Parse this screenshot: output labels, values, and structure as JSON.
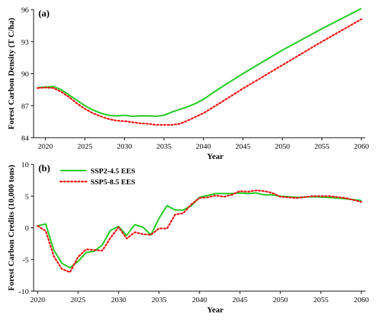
{
  "colors": {
    "ssp2": "#22cc22",
    "ssp5": "#ee1111",
    "axis": "#000000"
  },
  "chart_data": [
    {
      "type": "line",
      "panel_label": "(a)",
      "xlabel": "Year",
      "ylabel": "Forest Carbon Density (T C/ha)",
      "xlim": [
        2018.5,
        2060.5
      ],
      "ylim": [
        84,
        96
      ],
      "xticks": [
        2020,
        2025,
        2030,
        2035,
        2040,
        2045,
        2050,
        2055,
        2060
      ],
      "yticks": [
        84,
        87,
        90,
        93,
        96
      ],
      "series": [
        {
          "name": "SSP2-4.5 EES",
          "style": "solid",
          "x": [
            2019,
            2020,
            2021,
            2022,
            2023,
            2024,
            2025,
            2026,
            2027,
            2028,
            2029,
            2030,
            2031,
            2032,
            2033,
            2034,
            2035,
            2036,
            2037,
            2038,
            2039,
            2040,
            2042,
            2045,
            2050,
            2055,
            2060
          ],
          "y": [
            88.7,
            88.75,
            88.8,
            88.5,
            88.0,
            87.5,
            87.0,
            86.6,
            86.3,
            86.1,
            86.05,
            86.1,
            86.0,
            86.05,
            86.05,
            86.0,
            86.1,
            86.4,
            86.65,
            86.9,
            87.2,
            87.6,
            88.6,
            90.0,
            92.2,
            94.2,
            96.1
          ]
        },
        {
          "name": "SSP5-8.5 EES",
          "style": "dotted",
          "x": [
            2019,
            2020,
            2021,
            2022,
            2023,
            2024,
            2025,
            2026,
            2027,
            2028,
            2029,
            2030,
            2031,
            2032,
            2033,
            2034,
            2035,
            2036,
            2037,
            2038,
            2039,
            2040,
            2042,
            2045,
            2050,
            2055,
            2060
          ],
          "y": [
            88.65,
            88.7,
            88.65,
            88.3,
            87.8,
            87.2,
            86.7,
            86.3,
            86.0,
            85.75,
            85.6,
            85.55,
            85.45,
            85.35,
            85.3,
            85.2,
            85.2,
            85.2,
            85.3,
            85.6,
            85.95,
            86.3,
            87.2,
            88.6,
            90.8,
            93.0,
            95.1
          ]
        }
      ]
    },
    {
      "type": "line",
      "panel_label": "(b)",
      "xlabel": "Year",
      "ylabel": "Forest Carbon Credits (10,000 tons)",
      "xlim": [
        2019.5,
        2060.5
      ],
      "ylim": [
        -10,
        10
      ],
      "xticks": [
        2020,
        2025,
        2030,
        2035,
        2040,
        2045,
        2050,
        2055,
        2060
      ],
      "yticks": [
        -10,
        -5,
        0,
        5,
        10
      ],
      "legend": "top-left",
      "series": [
        {
          "name": "SSP2-4.5 EES",
          "style": "solid",
          "x": [
            2020,
            2021,
            2022,
            2023,
            2024,
            2025,
            2026,
            2027,
            2028,
            2029,
            2030,
            2031,
            2032,
            2033,
            2034,
            2035,
            2036,
            2037,
            2038,
            2039,
            2040,
            2041,
            2042,
            2043,
            2044,
            2045,
            2046,
            2047,
            2048,
            2049,
            2050,
            2052,
            2054,
            2056,
            2058,
            2060
          ],
          "y": [
            0.3,
            0.6,
            -3.5,
            -5.6,
            -6.3,
            -5.3,
            -3.9,
            -3.7,
            -2.7,
            -0.4,
            0.2,
            -1.2,
            0.5,
            0.1,
            -1.1,
            1.5,
            3.5,
            2.8,
            2.8,
            3.5,
            4.8,
            5.1,
            5.4,
            5.4,
            5.4,
            5.5,
            5.4,
            5.5,
            5.2,
            5.2,
            5.0,
            4.8,
            4.9,
            4.8,
            4.6,
            4.3
          ]
        },
        {
          "name": "SSP5-8.5 EES",
          "style": "dotted",
          "x": [
            2020,
            2021,
            2022,
            2023,
            2024,
            2025,
            2026,
            2027,
            2028,
            2029,
            2030,
            2031,
            2032,
            2033,
            2034,
            2035,
            2036,
            2037,
            2038,
            2039,
            2040,
            2041,
            2042,
            2043,
            2044,
            2045,
            2046,
            2047,
            2048,
            2049,
            2050,
            2052,
            2054,
            2056,
            2058,
            2060
          ],
          "y": [
            0.3,
            -0.5,
            -4.5,
            -6.5,
            -7.0,
            -4.6,
            -3.4,
            -3.5,
            -3.6,
            -1.6,
            0.1,
            -1.7,
            -0.7,
            -1.0,
            -1.1,
            -0.1,
            -0.1,
            2.1,
            2.3,
            3.7,
            4.7,
            4.8,
            5.1,
            4.9,
            5.2,
            5.8,
            5.7,
            5.9,
            5.8,
            5.5,
            4.9,
            4.7,
            5.0,
            5.0,
            4.7,
            4.1
          ]
        }
      ]
    }
  ]
}
